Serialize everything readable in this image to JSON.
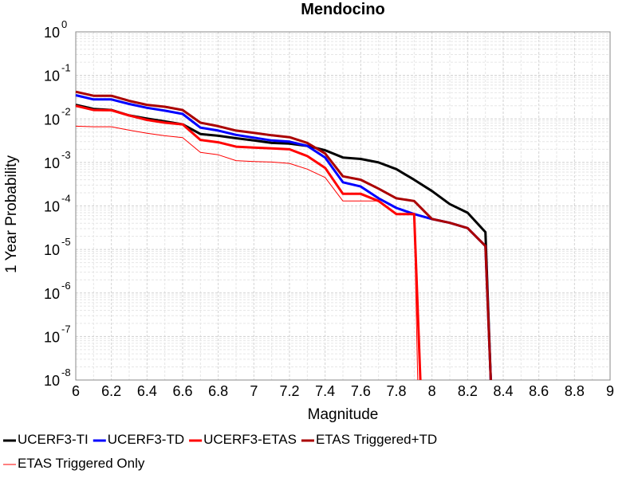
{
  "chart_data": {
    "type": "line",
    "title": "Mendocino",
    "xlabel": "Magnitude",
    "ylabel": "1 Year Probability",
    "xlim": [
      6,
      9
    ],
    "ylim": [
      1e-08,
      1
    ],
    "y_scale": "log",
    "grid": true,
    "legend_placement": "bottom",
    "x_ticks": [
      "6",
      "6.2",
      "6.4",
      "6.6",
      "6.8",
      "7",
      "7.2",
      "7.4",
      "7.6",
      "7.8",
      "8",
      "8.2",
      "8.4",
      "8.6",
      "8.8",
      "9"
    ],
    "y_ticks": [
      {
        "base": "10",
        "exp": "0"
      },
      {
        "base": "10",
        "exp": "-1"
      },
      {
        "base": "10",
        "exp": "-2"
      },
      {
        "base": "10",
        "exp": "-3"
      },
      {
        "base": "10",
        "exp": "-4"
      },
      {
        "base": "10",
        "exp": "-5"
      },
      {
        "base": "10",
        "exp": "-6"
      },
      {
        "base": "10",
        "exp": "-7"
      },
      {
        "base": "10",
        "exp": "-8"
      }
    ],
    "series": [
      {
        "name": "UCERF3-TI",
        "color": "#000000",
        "width": 3,
        "points": [
          [
            6.0,
            0.021
          ],
          [
            6.1,
            0.017
          ],
          [
            6.2,
            0.016
          ],
          [
            6.3,
            0.012
          ],
          [
            6.4,
            0.0102
          ],
          [
            6.5,
            0.0088
          ],
          [
            6.6,
            0.0075
          ],
          [
            6.7,
            0.0045
          ],
          [
            6.8,
            0.0041
          ],
          [
            6.9,
            0.0036
          ],
          [
            7.0,
            0.0032
          ],
          [
            7.1,
            0.0028
          ],
          [
            7.2,
            0.0027
          ],
          [
            7.3,
            0.0024
          ],
          [
            7.4,
            0.0019
          ],
          [
            7.5,
            0.0013
          ],
          [
            7.6,
            0.0012
          ],
          [
            7.7,
            0.001
          ],
          [
            7.8,
            0.0007
          ],
          [
            7.9,
            0.0004
          ],
          [
            8.0,
            0.00022
          ],
          [
            8.1,
            0.00011
          ],
          [
            8.2,
            7e-05
          ],
          [
            8.3,
            2.5e-05
          ],
          [
            8.33,
            1e-08
          ]
        ]
      },
      {
        "name": "UCERF3-TD",
        "color": "#0000ff",
        "width": 3,
        "points": [
          [
            6.0,
            0.035
          ],
          [
            6.1,
            0.028
          ],
          [
            6.2,
            0.028
          ],
          [
            6.3,
            0.022
          ],
          [
            6.4,
            0.018
          ],
          [
            6.5,
            0.0155
          ],
          [
            6.6,
            0.013
          ],
          [
            6.7,
            0.0063
          ],
          [
            6.8,
            0.0054
          ],
          [
            6.9,
            0.0043
          ],
          [
            7.0,
            0.0037
          ],
          [
            7.1,
            0.0032
          ],
          [
            7.2,
            0.003
          ],
          [
            7.3,
            0.0024
          ],
          [
            7.4,
            0.0013
          ],
          [
            7.5,
            0.00035
          ],
          [
            7.6,
            0.00028
          ],
          [
            7.7,
            0.00015
          ],
          [
            7.8,
            9e-05
          ],
          [
            7.9,
            6.5e-05
          ],
          [
            8.0,
            5e-05
          ],
          [
            8.1,
            4.1e-05
          ],
          [
            8.2,
            3.1e-05
          ],
          [
            8.3,
            1.2e-05
          ],
          [
            8.33,
            1e-08
          ]
        ]
      },
      {
        "name": "UCERF3-ETAS",
        "color": "#ff0000",
        "width": 3,
        "points": [
          [
            6.0,
            0.02
          ],
          [
            6.1,
            0.016
          ],
          [
            6.2,
            0.0158
          ],
          [
            6.3,
            0.012
          ],
          [
            6.4,
            0.0095
          ],
          [
            6.5,
            0.0082
          ],
          [
            6.6,
            0.0075
          ],
          [
            6.7,
            0.0033
          ],
          [
            6.8,
            0.0029
          ],
          [
            6.9,
            0.0023
          ],
          [
            7.0,
            0.0022
          ],
          [
            7.1,
            0.0021
          ],
          [
            7.2,
            0.002
          ],
          [
            7.3,
            0.0014
          ],
          [
            7.4,
            0.00075
          ],
          [
            7.5,
            0.00019
          ],
          [
            7.6,
            0.00019
          ],
          [
            7.7,
            0.00013
          ],
          [
            7.8,
            6.5e-05
          ],
          [
            7.9,
            6.5e-05
          ],
          [
            7.935,
            1e-08
          ]
        ]
      },
      {
        "name": "ETAS Triggered+TD",
        "color": "#aa0000",
        "width": 3,
        "points": [
          [
            6.0,
            0.042
          ],
          [
            6.1,
            0.034
          ],
          [
            6.2,
            0.034
          ],
          [
            6.3,
            0.026
          ],
          [
            6.4,
            0.021
          ],
          [
            6.5,
            0.019
          ],
          [
            6.6,
            0.016
          ],
          [
            6.7,
            0.0082
          ],
          [
            6.8,
            0.0068
          ],
          [
            6.9,
            0.0054
          ],
          [
            7.0,
            0.0048
          ],
          [
            7.1,
            0.0042
          ],
          [
            7.2,
            0.0038
          ],
          [
            7.3,
            0.0028
          ],
          [
            7.4,
            0.0016
          ],
          [
            7.5,
            0.00048
          ],
          [
            7.6,
            0.0004
          ],
          [
            7.7,
            0.00025
          ],
          [
            7.8,
            0.00015
          ],
          [
            7.9,
            0.00013
          ],
          [
            8.0,
            5e-05
          ],
          [
            8.1,
            4.1e-05
          ],
          [
            8.2,
            3.1e-05
          ],
          [
            8.3,
            1.2e-05
          ],
          [
            8.33,
            1e-08
          ]
        ]
      },
      {
        "name": "ETAS Triggered Only",
        "color": "#ff0000",
        "width": 1,
        "points": [
          [
            6.0,
            0.0068
          ],
          [
            6.1,
            0.0066
          ],
          [
            6.2,
            0.0066
          ],
          [
            6.3,
            0.0055
          ],
          [
            6.4,
            0.0047
          ],
          [
            6.5,
            0.0041
          ],
          [
            6.6,
            0.0037
          ],
          [
            6.7,
            0.0017
          ],
          [
            6.8,
            0.0015
          ],
          [
            6.9,
            0.0011
          ],
          [
            7.0,
            0.00105
          ],
          [
            7.1,
            0.00102
          ],
          [
            7.2,
            0.00095
          ],
          [
            7.3,
            0.0007
          ],
          [
            7.4,
            0.00045
          ],
          [
            7.5,
            0.00013
          ],
          [
            7.6,
            0.00013
          ],
          [
            7.7,
            0.00013
          ],
          [
            7.8,
            6.3e-05
          ],
          [
            7.9,
            6.3e-05
          ],
          [
            7.92,
            1e-08
          ]
        ]
      }
    ]
  }
}
